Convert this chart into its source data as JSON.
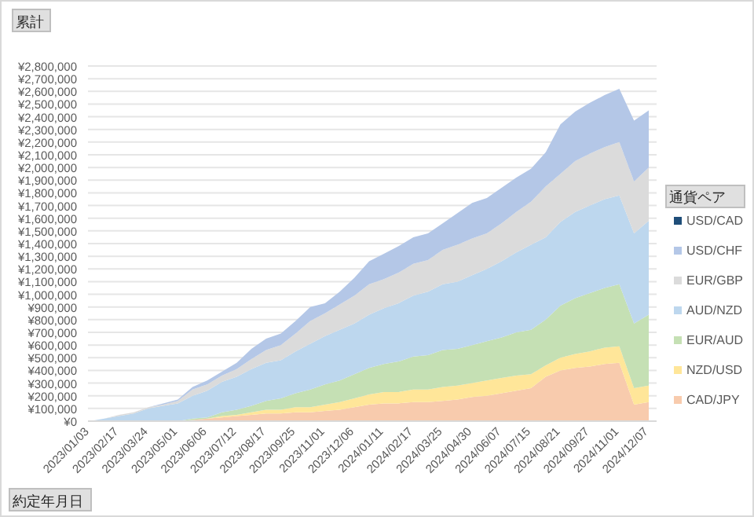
{
  "chart_data": {
    "type": "area",
    "stacked": true,
    "title": "累計",
    "xlabel": "約定年月日",
    "legend_title": "通貨ペア",
    "legend": "right",
    "grid": "y",
    "categories": [
      "2023/01/03",
      null,
      "2023/02/17",
      null,
      "2023/03/24",
      null,
      "2023/05/01",
      null,
      "2023/06/06",
      null,
      "2023/07/12",
      null,
      "2023/08/17",
      null,
      "2023/09/25",
      null,
      "2023/11/01",
      null,
      "2023/12/06",
      null,
      "2024/01/11",
      null,
      "2024/02/17",
      null,
      "2024/03/25",
      null,
      "2024/04/30",
      null,
      "2024/06/07",
      null,
      "2024/07/15",
      null,
      "2024/08/21",
      null,
      "2024/09/27",
      null,
      "2024/11/01",
      null,
      "2024/12/07"
    ],
    "ylim": [
      0,
      2800000
    ],
    "yticks": [
      {
        "value": 0,
        "label": "¥0"
      },
      {
        "value": 100000,
        "label": "¥100,000"
      },
      {
        "value": 200000,
        "label": "¥200,000"
      },
      {
        "value": 300000,
        "label": "¥300,000"
      },
      {
        "value": 400000,
        "label": "¥400,000"
      },
      {
        "value": 500000,
        "label": "¥500,000"
      },
      {
        "value": 600000,
        "label": "¥600,000"
      },
      {
        "value": 700000,
        "label": "¥700,000"
      },
      {
        "value": 800000,
        "label": "¥800,000"
      },
      {
        "value": 900000,
        "label": "¥900,000"
      },
      {
        "value": 1000000,
        "label": "¥1,000,000"
      },
      {
        "value": 1100000,
        "label": "¥1,100,000"
      },
      {
        "value": 1200000,
        "label": "¥1,200,000"
      },
      {
        "value": 1300000,
        "label": "¥1,300,000"
      },
      {
        "value": 1400000,
        "label": "¥1,400,000"
      },
      {
        "value": 1500000,
        "label": "¥1,500,000"
      },
      {
        "value": 1600000,
        "label": "¥1,600,000"
      },
      {
        "value": 1700000,
        "label": "¥1,700,000"
      },
      {
        "value": 1800000,
        "label": "¥1,800,000"
      },
      {
        "value": 1900000,
        "label": "¥1,900,000"
      },
      {
        "value": 2000000,
        "label": "¥2,000,000"
      },
      {
        "value": 2100000,
        "label": "¥2,100,000"
      },
      {
        "value": 2200000,
        "label": "¥2,200,000"
      },
      {
        "value": 2300000,
        "label": "¥2,300,000"
      },
      {
        "value": 2400000,
        "label": "¥2,400,000"
      },
      {
        "value": 2500000,
        "label": "¥2,500,000"
      },
      {
        "value": 2600000,
        "label": "¥2,600,000"
      },
      {
        "value": 2700000,
        "label": "¥2,700,000"
      },
      {
        "value": 2800000,
        "label": "¥2,800,000"
      }
    ],
    "series": [
      {
        "name": "CAD/JPY",
        "color": "#f8cbad",
        "values": [
          0,
          0,
          0,
          0,
          0,
          0,
          0,
          10000,
          20000,
          30000,
          40000,
          50000,
          60000,
          60000,
          70000,
          70000,
          80000,
          90000,
          110000,
          130000,
          140000,
          140000,
          150000,
          150000,
          160000,
          170000,
          190000,
          200000,
          220000,
          240000,
          260000,
          350000,
          400000,
          420000,
          430000,
          450000,
          460000,
          130000,
          150000
        ]
      },
      {
        "name": "NZD/USD",
        "color": "#ffe699",
        "values": [
          0,
          0,
          0,
          0,
          0,
          0,
          0,
          0,
          0,
          10000,
          10000,
          20000,
          30000,
          30000,
          40000,
          40000,
          50000,
          60000,
          70000,
          80000,
          90000,
          90000,
          100000,
          100000,
          110000,
          110000,
          110000,
          120000,
          120000,
          120000,
          110000,
          90000,
          100000,
          110000,
          120000,
          130000,
          130000,
          130000,
          130000
        ]
      },
      {
        "name": "EUR/AUD",
        "color": "#c5e0b4",
        "values": [
          0,
          0,
          0,
          0,
          0,
          0,
          0,
          10000,
          10000,
          30000,
          40000,
          50000,
          70000,
          90000,
          110000,
          140000,
          160000,
          170000,
          190000,
          210000,
          220000,
          240000,
          260000,
          270000,
          290000,
          290000,
          300000,
          310000,
          320000,
          340000,
          350000,
          360000,
          410000,
          440000,
          460000,
          470000,
          490000,
          510000,
          560000
        ]
      },
      {
        "name": "AUD/NZD",
        "color": "#bdd7ee",
        "values": [
          0,
          20000,
          40000,
          60000,
          100000,
          120000,
          140000,
          180000,
          210000,
          240000,
          260000,
          290000,
          300000,
          300000,
          330000,
          360000,
          380000,
          400000,
          400000,
          420000,
          440000,
          460000,
          480000,
          500000,
          520000,
          530000,
          550000,
          570000,
          600000,
          630000,
          670000,
          650000,
          660000,
          680000,
          690000,
          700000,
          700000,
          710000,
          740000
        ]
      },
      {
        "name": "EUR/GBP",
        "color": "#dbdbdb",
        "values": [
          0,
          0,
          10000,
          10000,
          10000,
          10000,
          20000,
          50000,
          50000,
          50000,
          60000,
          80000,
          100000,
          120000,
          140000,
          180000,
          180000,
          200000,
          220000,
          240000,
          230000,
          240000,
          250000,
          250000,
          270000,
          290000,
          290000,
          280000,
          300000,
          320000,
          340000,
          400000,
          380000,
          400000,
          410000,
          410000,
          420000,
          410000,
          420000
        ]
      },
      {
        "name": "USD/CHF",
        "color": "#b4c7e7",
        "values": [
          0,
          0,
          0,
          0,
          0,
          10000,
          10000,
          20000,
          30000,
          30000,
          50000,
          80000,
          90000,
          90000,
          100000,
          110000,
          80000,
          100000,
          140000,
          180000,
          200000,
          210000,
          210000,
          210000,
          210000,
          250000,
          280000,
          280000,
          280000,
          270000,
          260000,
          270000,
          390000,
          390000,
          400000,
          410000,
          420000,
          480000,
          450000
        ]
      },
      {
        "name": "USD/CAD",
        "color": "#1f4e79",
        "values": [
          null,
          null,
          null,
          null,
          null,
          null,
          null,
          null,
          null,
          null,
          null,
          null,
          null,
          null,
          null,
          null,
          null,
          null,
          null,
          null,
          null,
          null,
          null,
          null,
          null,
          null,
          null,
          null,
          null,
          null,
          null,
          null,
          null,
          null,
          null,
          null,
          null,
          null,
          null
        ]
      }
    ]
  }
}
